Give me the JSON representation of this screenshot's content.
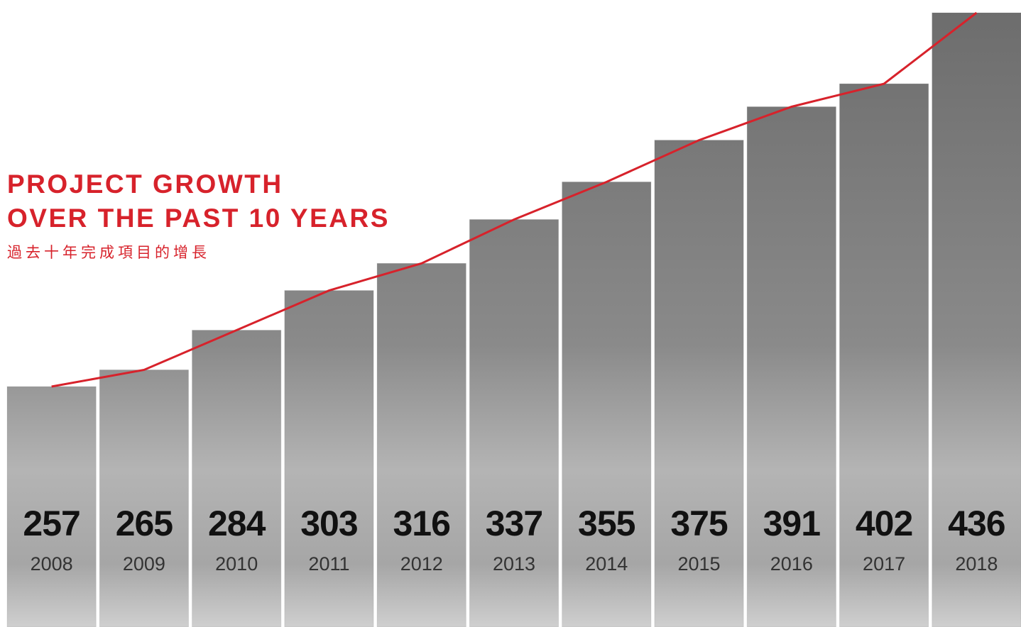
{
  "chart_data": {
    "type": "bar",
    "title": "PROJECT GROWTH\nOVER THE PAST 10 YEARS",
    "subtitle": "過去十年完成項目的增長",
    "categories": [
      "2008",
      "2009",
      "2010",
      "2011",
      "2012",
      "2013",
      "2014",
      "2015",
      "2016",
      "2017",
      "2018"
    ],
    "values": [
      257,
      265,
      284,
      303,
      316,
      337,
      355,
      375,
      391,
      402,
      436
    ],
    "color": "#8a8a8a",
    "line_color": "#d7222b"
  }
}
